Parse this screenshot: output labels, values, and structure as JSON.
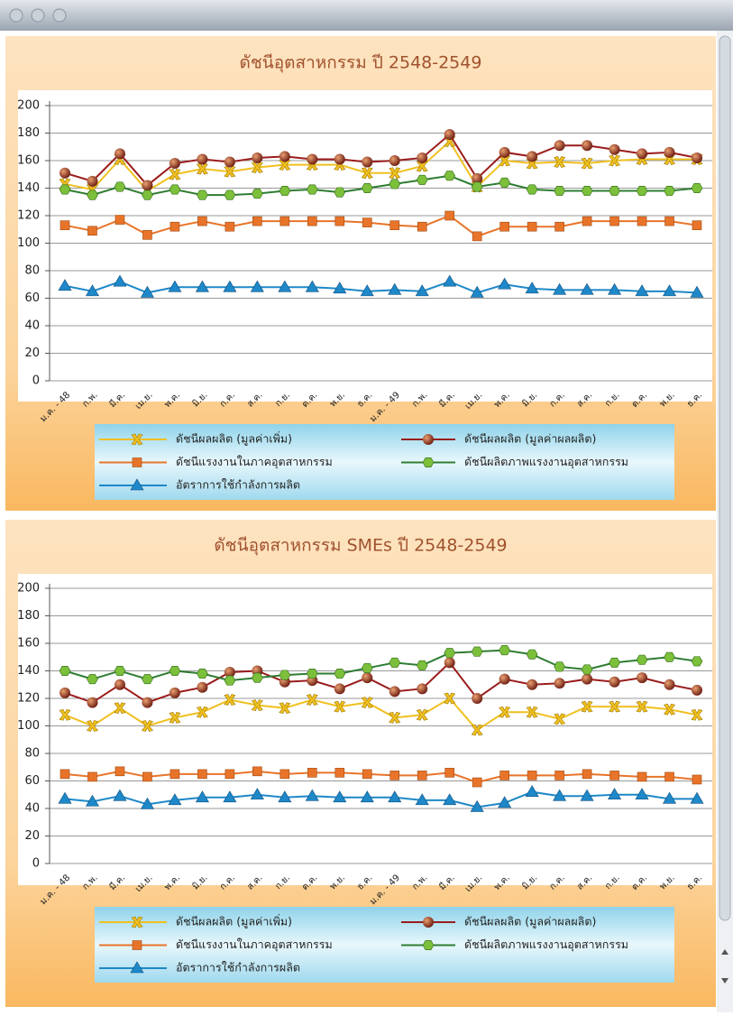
{
  "chart_data": [
    {
      "type": "line",
      "title": "ดัชนีอุตสาหกรรม ปี 2548-2549",
      "categories": [
        "ม.ค. - 48",
        "ก.พ.",
        "มี.ค.",
        "เม.ย.",
        "พ.ค.",
        "มิ.ย.",
        "ก.ค.",
        "ส.ค.",
        "ก.ย.",
        "ต.ค.",
        "พ.ย.",
        "ธ.ค.",
        "ม.ค. - 49",
        "ก.พ.",
        "มี.ค.",
        "เม.ย.",
        "พ.ค.",
        "มิ.ย.",
        "ก.ค.",
        "ส.ค.",
        "ก.ย.",
        "ต.ค.",
        "พ.ย.",
        "ธ.ค."
      ],
      "ylim": [
        0,
        200
      ],
      "yticks": [
        0,
        20,
        40,
        60,
        80,
        100,
        120,
        140,
        160,
        180,
        200
      ],
      "grid": true,
      "series": [
        {
          "name": "ดัชนีผลผลิต (มูลค่าเพิ่ม)",
          "color": "#f0c020",
          "values": [
            143,
            139,
            161,
            138,
            150,
            154,
            152,
            155,
            157,
            157,
            157,
            151,
            151,
            156,
            174,
            141,
            160,
            158,
            159,
            158,
            160,
            161,
            161,
            161
          ]
        },
        {
          "name": "ดัชนีผลผลิต (มูลค่าผลผลิต)",
          "color": "#9b1c1c",
          "values": [
            151,
            145,
            165,
            142,
            158,
            161,
            159,
            162,
            163,
            161,
            161,
            159,
            160,
            162,
            179,
            147,
            166,
            163,
            171,
            171,
            168,
            165,
            166,
            162
          ]
        },
        {
          "name": "ดัชนีแรงงานในภาคอุตสาหกรรม",
          "color": "#e8742a",
          "values": [
            113,
            109,
            117,
            106,
            112,
            116,
            112,
            116,
            116,
            116,
            116,
            115,
            113,
            112,
            120,
            105,
            112,
            112,
            112,
            116,
            116,
            116,
            116,
            113
          ]
        },
        {
          "name": "ดัชนีผลิตภาพแรงงานอุตสาหกรรม",
          "color": "#2e7d32",
          "values": [
            139,
            135,
            141,
            135,
            139,
            135,
            135,
            136,
            138,
            139,
            137,
            140,
            143,
            146,
            149,
            141,
            144,
            139,
            138,
            138,
            138,
            138,
            138,
            140
          ]
        },
        {
          "name": "อัตราการใช้กำลังการผลิต",
          "color": "#1e88c8",
          "values": [
            69,
            65,
            72,
            64,
            68,
            68,
            68,
            68,
            68,
            68,
            67,
            65,
            66,
            65,
            72,
            64,
            70,
            67,
            66,
            66,
            66,
            65,
            65,
            64
          ]
        }
      ]
    },
    {
      "type": "line",
      "title": "ดัชนีอุตสาหกรรม SMEs ปี 2548-2549",
      "categories": [
        "ม.ค. - 48",
        "ก.พ.",
        "มี.ค.",
        "เม.ย.",
        "พ.ค.",
        "มิ.ย.",
        "ก.ค.",
        "ส.ค.",
        "ก.ย.",
        "ต.ค.",
        "พ.ย.",
        "ธ.ค.",
        "ม.ค. - 49",
        "ก.พ.",
        "มี.ค.",
        "เม.ย.",
        "พ.ค.",
        "มิ.ย.",
        "ก.ค.",
        "ส.ค.",
        "ก.ย.",
        "ต.ค.",
        "พ.ย.",
        "ธ.ค."
      ],
      "ylim": [
        0,
        200
      ],
      "yticks": [
        0,
        20,
        40,
        60,
        80,
        100,
        120,
        140,
        160,
        180,
        200
      ],
      "grid": true,
      "series": [
        {
          "name": "ดัชนีผลผลิต (มูลค่าเพิ่ม)",
          "color": "#f0c020",
          "values": [
            108,
            100,
            113,
            100,
            106,
            110,
            119,
            115,
            113,
            119,
            114,
            117,
            106,
            108,
            120,
            97,
            110,
            110,
            105,
            114,
            114,
            114,
            112,
            108
          ]
        },
        {
          "name": "ดัชนีผลผลิต (มูลค่าผลผลิต)",
          "color": "#9b1c1c",
          "values": [
            124,
            117,
            130,
            117,
            124,
            128,
            139,
            140,
            132,
            133,
            127,
            135,
            125,
            127,
            146,
            120,
            134,
            130,
            131,
            134,
            132,
            135,
            130,
            126
          ]
        },
        {
          "name": "ดัชนีแรงงานในภาคอุตสาหกรรม",
          "color": "#e8742a",
          "values": [
            65,
            63,
            67,
            63,
            65,
            65,
            65,
            67,
            65,
            66,
            66,
            65,
            64,
            64,
            66,
            59,
            64,
            64,
            64,
            65,
            64,
            63,
            63,
            61
          ]
        },
        {
          "name": "ดัชนีผลิตภาพแรงงานอุตสาหกรรม",
          "color": "#2e7d32",
          "values": [
            140,
            134,
            140,
            134,
            140,
            138,
            133,
            135,
            137,
            138,
            138,
            142,
            146,
            144,
            153,
            154,
            155,
            152,
            143,
            141,
            146,
            148,
            150,
            147
          ]
        },
        {
          "name": "อัตราการใช้กำลังการผลิต",
          "color": "#1e88c8",
          "values": [
            47,
            45,
            49,
            43,
            46,
            48,
            48,
            50,
            48,
            49,
            48,
            48,
            48,
            46,
            46,
            41,
            44,
            52,
            49,
            49,
            50,
            50,
            47,
            47
          ]
        }
      ]
    }
  ]
}
